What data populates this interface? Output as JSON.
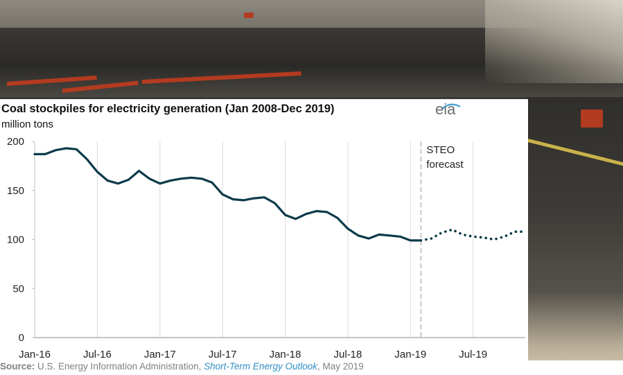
{
  "title": "Coal stockpiles for electricity generation (Jan 2008-Dec 2019)",
  "units": "million tons",
  "logo": "eia",
  "source": {
    "label": "Source:",
    "agency": "U.S. Energy Information Administration,",
    "publication": "Short-Term Energy Outlook",
    "date": ", May 2019"
  },
  "colors": {
    "line": "#0c3a4a",
    "forecast_divider": "#aaaaaa",
    "grid": "#d9d9d9"
  },
  "chart_data": {
    "type": "line",
    "title": "Coal stockpiles for electricity generation (Jan 2008-Dec 2019)",
    "ylabel": "million tons",
    "xlabel": "",
    "ylim": [
      0,
      200
    ],
    "yticks": [
      0,
      50,
      100,
      150,
      200
    ],
    "xlim": [
      "2016-01",
      "2019-12"
    ],
    "xticks": [
      {
        "value": "2016-01",
        "label": "Jan-16"
      },
      {
        "value": "2016-07",
        "label": "Jul-16"
      },
      {
        "value": "2017-01",
        "label": "Jan-17"
      },
      {
        "value": "2017-07",
        "label": "Jul-17"
      },
      {
        "value": "2018-01",
        "label": "Jan-18"
      },
      {
        "value": "2018-07",
        "label": "Jul-18"
      },
      {
        "value": "2019-01",
        "label": "Jan-19"
      },
      {
        "value": "2019-07",
        "label": "Jul-19"
      }
    ],
    "grid": "vertical",
    "annotation": {
      "text_lines": [
        "STEO",
        "forecast"
      ],
      "at": "2019-02"
    },
    "series": [
      {
        "style": "solid",
        "x": [
          "2016-01",
          "2016-02",
          "2016-03",
          "2016-04",
          "2016-05",
          "2016-06",
          "2016-07",
          "2016-08",
          "2016-09",
          "2016-10",
          "2016-11",
          "2016-12",
          "2017-01",
          "2017-02",
          "2017-03",
          "2017-04",
          "2017-05",
          "2017-06",
          "2017-07",
          "2017-08",
          "2017-09",
          "2017-10",
          "2017-11",
          "2017-12",
          "2018-01",
          "2018-02",
          "2018-03",
          "2018-04",
          "2018-05",
          "2018-06",
          "2018-07",
          "2018-08",
          "2018-09",
          "2018-10",
          "2018-11",
          "2018-12",
          "2019-01",
          "2019-02"
        ],
        "values": [
          187,
          187,
          191,
          193,
          192,
          182,
          169,
          160,
          157,
          161,
          170,
          162,
          157,
          160,
          162,
          163,
          162,
          158,
          146,
          141,
          140,
          142,
          143,
          137,
          125,
          121,
          126,
          129,
          128,
          122,
          111,
          104,
          101,
          105,
          104,
          103,
          99,
          99
        ]
      },
      {
        "style": "dotted",
        "x": [
          "2019-02",
          "2019-03",
          "2019-04",
          "2019-05",
          "2019-06",
          "2019-07",
          "2019-08",
          "2019-09",
          "2019-10",
          "2019-11",
          "2019-12"
        ],
        "values": [
          99,
          101,
          107,
          110,
          105,
          103,
          102,
          100,
          103,
          108,
          108
        ]
      }
    ]
  }
}
